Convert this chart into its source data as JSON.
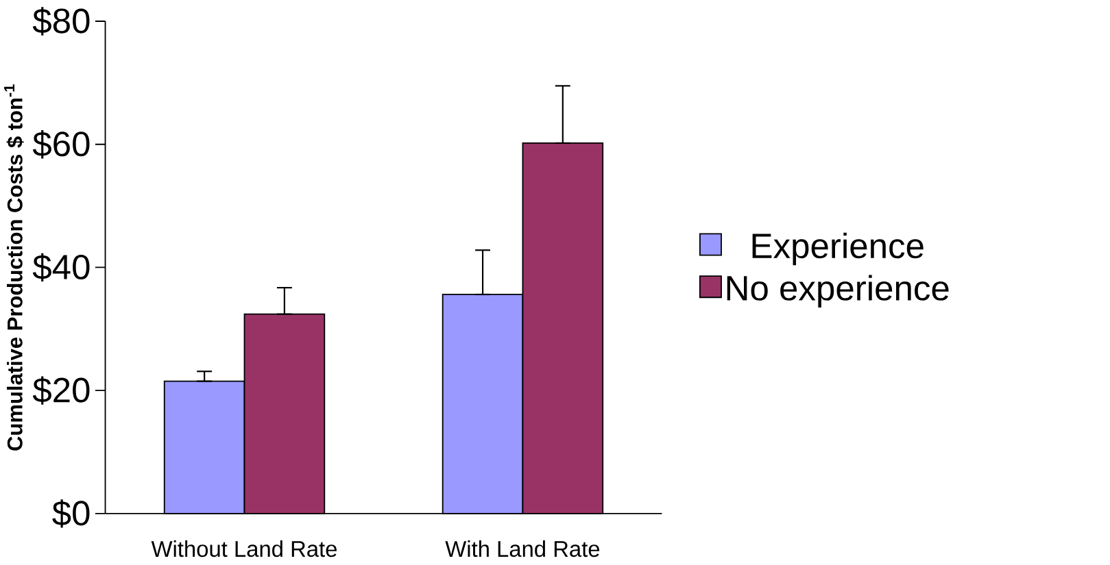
{
  "chart_data": {
    "type": "bar",
    "ylabel": "**Cumulative Production Costs $ ton$^{-1}$**",
    "categories": [
      "Without Land Rate",
      "With Land Rate"
    ],
    "series": [
      {
        "name": "Experience",
        "color": "#9999ff",
        "values": [
          21.5,
          35.6
        ],
        "errors": [
          [
            21.5,
            23.1
          ],
          [
            35.6,
            42.8
          ]
        ]
      },
      {
        "name": "No experience",
        "color": "#993366",
        "values": [
          32.4,
          60.2
        ],
        "errors": [
          [
            32.4,
            36.7
          ],
          [
            60.2,
            69.5
          ]
        ]
      }
    ],
    "ylim": [
      0,
      80
    ],
    "yticks": [
      {
        "value": 0,
        "label": "$0"
      },
      {
        "value": 20,
        "label": "$20"
      },
      {
        "value": 40,
        "label": "$40"
      },
      {
        "value": 60,
        "label": "$60"
      },
      {
        "value": 80,
        "label": "$80"
      }
    ],
    "grid": false,
    "legend": "right"
  }
}
